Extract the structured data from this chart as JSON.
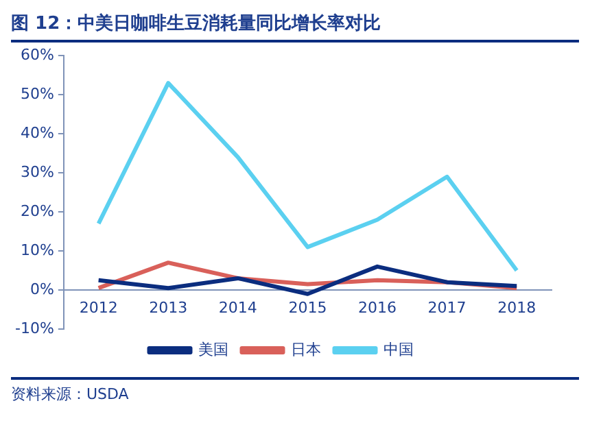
{
  "chart_data": {
    "type": "line",
    "title": "图 12：中美日咖啡生豆消耗量同比增长率对比",
    "categories": [
      "2012",
      "2013",
      "2014",
      "2015",
      "2016",
      "2017",
      "2018"
    ],
    "series": [
      {
        "name": "美国",
        "color": "#0b2d7f",
        "values": [
          0.025,
          0.005,
          0.03,
          -0.01,
          0.06,
          0.02,
          0.01
        ]
      },
      {
        "name": "日本",
        "color": "#d9605a",
        "values": [
          0.005,
          0.07,
          0.03,
          0.015,
          0.025,
          0.02,
          0.005
        ]
      },
      {
        "name": "中国",
        "color": "#5bd0f0",
        "values": [
          0.17,
          0.53,
          0.34,
          0.11,
          0.18,
          0.29,
          0.05
        ]
      }
    ],
    "ylim": [
      -0.1,
      0.6
    ],
    "yticks": [
      {
        "value": -0.1,
        "label": "-10%"
      },
      {
        "value": 0,
        "label": "0%"
      },
      {
        "value": 0.1,
        "label": "10%"
      },
      {
        "value": 0.2,
        "label": "20%"
      },
      {
        "value": 0.3,
        "label": "30%"
      },
      {
        "value": 0.4,
        "label": "40%"
      },
      {
        "value": 0.5,
        "label": "50%"
      },
      {
        "value": 0.6,
        "label": "60%"
      }
    ],
    "grid": false,
    "legend": "bottom",
    "marker": "none",
    "line_style": "solid",
    "annotations": [
      "资料来源：USDA"
    ]
  }
}
